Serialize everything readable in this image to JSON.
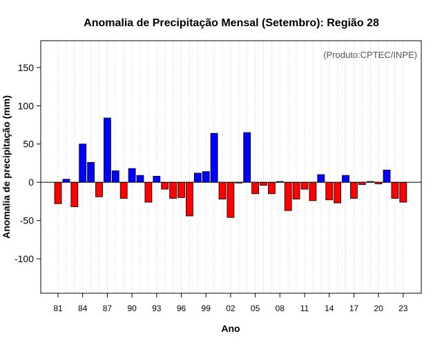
{
  "chart_data": {
    "type": "bar",
    "title": "Anomalia de Precipitação Mensal (Setembro): Região 28",
    "annotation": "(Produto:CPTEC/INPE)",
    "xlabel": "Ano",
    "ylabel": "Anomalia de precipitação (mm)",
    "ylim": [
      -145,
      185
    ],
    "yticks": [
      -100,
      -50,
      0,
      50,
      100,
      150
    ],
    "xtick_labels": [
      "81",
      "84",
      "87",
      "90",
      "93",
      "96",
      "99",
      "02",
      "05",
      "08",
      "11",
      "14",
      "17",
      "20",
      "23"
    ],
    "categories": [
      "1981",
      "1982",
      "1983",
      "1984",
      "1985",
      "1986",
      "1987",
      "1988",
      "1989",
      "1990",
      "1991",
      "1992",
      "1993",
      "1994",
      "1995",
      "1996",
      "1997",
      "1998",
      "1999",
      "2000",
      "2001",
      "2002",
      "2003",
      "2004",
      "2005",
      "2006",
      "2007",
      "2008",
      "2009",
      "2010",
      "2011",
      "2012",
      "2013",
      "2014",
      "2015",
      "2016",
      "2017",
      "2018",
      "2019",
      "2020",
      "2021",
      "2022",
      "2023"
    ],
    "values": [
      -28,
      4,
      -32,
      50,
      26,
      -19,
      84,
      15,
      -21,
      18,
      9,
      -26,
      8,
      -9,
      -21,
      -20,
      -44,
      12,
      14,
      64,
      -22,
      -46,
      -1,
      65,
      -15,
      -4,
      -15,
      1,
      -37,
      -22,
      -9,
      -24,
      10,
      -23,
      -27,
      9,
      -21,
      -3,
      1,
      -2,
      16,
      -21,
      -26
    ],
    "positive_color": "#0000ff",
    "negative_color": "#ff0000",
    "grid": "vertical dotted",
    "legend": "none"
  }
}
